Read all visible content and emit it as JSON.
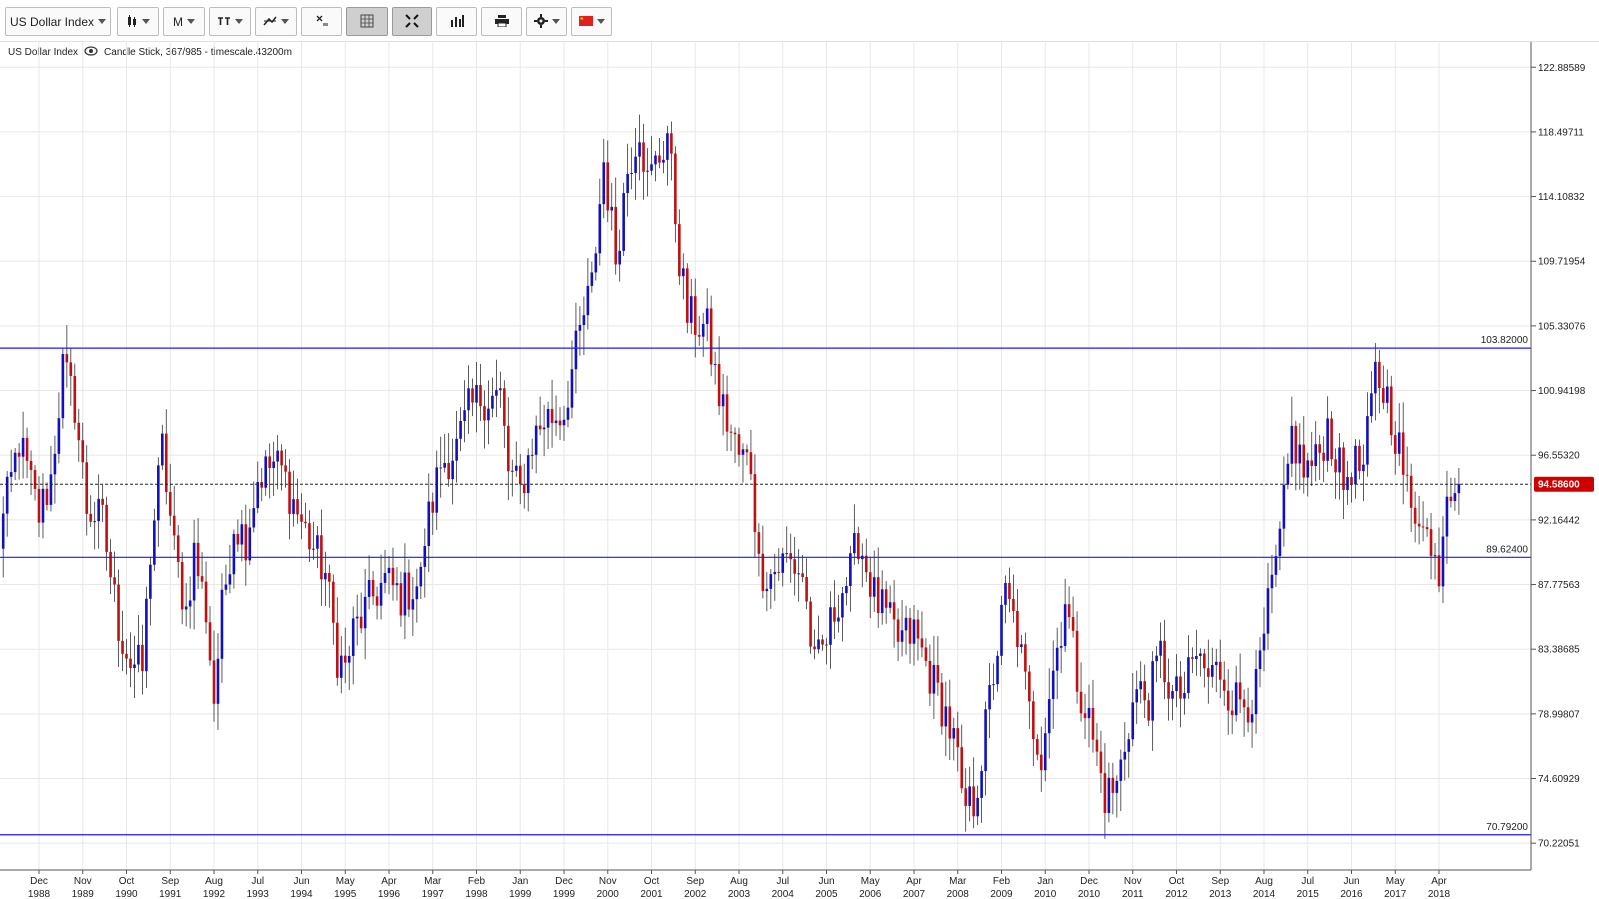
{
  "toolbar": {
    "symbol_label": "US Dollar Index",
    "period_label": "M",
    "icons": [
      "candlestick-icon",
      "period-icon",
      "indicator-icon",
      "drawing-icon",
      "clear-drawings-icon",
      "grid-icon",
      "fullscreen-icon",
      "volume-icon",
      "print-icon",
      "settings-icon",
      "flag-icon"
    ]
  },
  "info": {
    "symbol": "US Dollar Index",
    "detail": "Candle Stick, 367/985 - timescale.43200m"
  },
  "colors": {
    "up": "#1010c0",
    "down": "#c01010",
    "hline": "#1a1aff",
    "price_badge": "#d00000"
  },
  "chart_data": {
    "type": "candlestick",
    "ylim": [
      68.4,
      124.6
    ],
    "y_ticks": [
      "122.88589",
      "118.49711",
      "114.10832",
      "109.71954",
      "105.33076",
      "100.94198",
      "96.55320",
      "92.16442",
      "87.77563",
      "83.38685",
      "78.99807",
      "74.60929",
      "70.22051"
    ],
    "x_ticks": [
      {
        "month": "Dec",
        "year": "1988"
      },
      {
        "month": "Nov",
        "year": "1989"
      },
      {
        "month": "Oct",
        "year": "1990"
      },
      {
        "month": "Sep",
        "year": "1991"
      },
      {
        "month": "Aug",
        "year": "1992"
      },
      {
        "month": "Jul",
        "year": "1993"
      },
      {
        "month": "Jun",
        "year": "1994"
      },
      {
        "month": "May",
        "year": "1995"
      },
      {
        "month": "Apr",
        "year": "1996"
      },
      {
        "month": "Mar",
        "year": "1997"
      },
      {
        "month": "Feb",
        "year": "1998"
      },
      {
        "month": "Jan",
        "year": "1999"
      },
      {
        "month": "Dec",
        "year": "1999"
      },
      {
        "month": "Nov",
        "year": "2000"
      },
      {
        "month": "Oct",
        "year": "2001"
      },
      {
        "month": "Sep",
        "year": "2002"
      },
      {
        "month": "Aug",
        "year": "2003"
      },
      {
        "month": "Jul",
        "year": "2004"
      },
      {
        "month": "Jun",
        "year": "2005"
      },
      {
        "month": "May",
        "year": "2006"
      },
      {
        "month": "Apr",
        "year": "2007"
      },
      {
        "month": "Mar",
        "year": "2008"
      },
      {
        "month": "Feb",
        "year": "2009"
      },
      {
        "month": "Jan",
        "year": "2010"
      },
      {
        "month": "Dec",
        "year": "2010"
      },
      {
        "month": "Nov",
        "year": "2011"
      },
      {
        "month": "Oct",
        "year": "2012"
      },
      {
        "month": "Sep",
        "year": "2013"
      },
      {
        "month": "Aug",
        "year": "2014"
      },
      {
        "month": "Jul",
        "year": "2015"
      },
      {
        "month": "Jun",
        "year": "2016"
      },
      {
        "month": "May",
        "year": "2017"
      },
      {
        "month": "Apr",
        "year": "2018"
      }
    ],
    "horizontal_lines": [
      {
        "value": 103.82,
        "label": "103.82000"
      },
      {
        "value": 89.624,
        "label": "89.62400"
      },
      {
        "value": 70.792,
        "label": "70.79200"
      }
    ],
    "current_price": {
      "value": 94.586,
      "label": "94.58600"
    },
    "close_path": [
      [
        "1988-01",
        89.5
      ],
      [
        "1988-07",
        97.5
      ],
      [
        "1988-12",
        92.5
      ],
      [
        "1989-03",
        95.0
      ],
      [
        "1989-06",
        102.5
      ],
      [
        "1989-09",
        100.0
      ],
      [
        "1989-12",
        93.0
      ],
      [
        "1990-04",
        92.0
      ],
      [
        "1990-08",
        85.0
      ],
      [
        "1990-11",
        82.5
      ],
      [
        "1991-02",
        82.0
      ],
      [
        "1991-04",
        90.0
      ],
      [
        "1991-07",
        97.0
      ],
      [
        "1991-10",
        90.0
      ],
      [
        "1992-01",
        86.0
      ],
      [
        "1992-03",
        90.0
      ],
      [
        "1992-06",
        86.0
      ],
      [
        "1992-08",
        80.0
      ],
      [
        "1992-10",
        86.0
      ],
      [
        "1993-01",
        92.0
      ],
      [
        "1993-04",
        91.0
      ],
      [
        "1993-07",
        95.0
      ],
      [
        "1993-11",
        96.0
      ],
      [
        "1994-01",
        95.5
      ],
      [
        "1994-06",
        92.0
      ],
      [
        "1994-12",
        88.5
      ],
      [
        "1995-03",
        83.0
      ],
      [
        "1995-05",
        82.0
      ],
      [
        "1995-07",
        84.5
      ],
      [
        "1995-12",
        87.0
      ],
      [
        "1996-03",
        88.0
      ],
      [
        "1996-07",
        87.0
      ],
      [
        "1996-12",
        88.0
      ],
      [
        "1997-01",
        91.0
      ],
      [
        "1997-05",
        96.0
      ],
      [
        "1997-09",
        97.0
      ],
      [
        "1997-12",
        99.5
      ],
      [
        "1998-03",
        100.5
      ],
      [
        "1998-08",
        100.5
      ],
      [
        "1998-10",
        95.5
      ],
      [
        "1999-01",
        94.0
      ],
      [
        "1999-04",
        97.5
      ],
      [
        "1999-07",
        99.0
      ],
      [
        "1999-12",
        99.5
      ],
      [
        "2000-01",
        101.0
      ],
      [
        "2000-05",
        106.0
      ],
      [
        "2000-07",
        108.0
      ],
      [
        "2000-10",
        116.5
      ],
      [
        "2001-01",
        110.0
      ],
      [
        "2001-04",
        116.0
      ],
      [
        "2001-07",
        119.0
      ],
      [
        "2001-09",
        115.0
      ],
      [
        "2002-01",
        117.5
      ],
      [
        "2002-02",
        118.5
      ],
      [
        "2002-05",
        110.0
      ],
      [
        "2002-07",
        106.0
      ],
      [
        "2002-12",
        105.0
      ],
      [
        "2003-03",
        100.5
      ],
      [
        "2003-06",
        98.0
      ],
      [
        "2003-08",
        96.5
      ],
      [
        "2003-11",
        96.0
      ],
      [
        "2004-01",
        89.0
      ],
      [
        "2004-04",
        88.5
      ],
      [
        "2004-08",
        89.5
      ],
      [
        "2004-12",
        88.5
      ],
      [
        "2005-03",
        82.0
      ],
      [
        "2005-06",
        84.0
      ],
      [
        "2005-09",
        87.0
      ],
      [
        "2005-12",
        88.5
      ],
      [
        "2006-02",
        91.0
      ],
      [
        "2006-06",
        87.0
      ],
      [
        "2006-12",
        84.0
      ],
      [
        "2007-04",
        84.5
      ],
      [
        "2007-09",
        81.0
      ],
      [
        "2007-12",
        79.0
      ],
      [
        "2008-03",
        76.0
      ],
      [
        "2008-04",
        72.5
      ],
      [
        "2008-07",
        73.0
      ],
      [
        "2008-09",
        76.0
      ],
      [
        "2008-11",
        80.0
      ],
      [
        "2009-03",
        87.0
      ],
      [
        "2009-06",
        84.5
      ],
      [
        "2009-09",
        79.0
      ],
      [
        "2009-12",
        76.5
      ],
      [
        "2010-02",
        80.5
      ],
      [
        "2010-05",
        85.0
      ],
      [
        "2010-06",
        87.0
      ],
      [
        "2010-09",
        81.5
      ],
      [
        "2010-12",
        78.5
      ],
      [
        "2011-02",
        76.0
      ],
      [
        "2011-04",
        73.5
      ],
      [
        "2011-07",
        74.0
      ],
      [
        "2011-10",
        78.5
      ],
      [
        "2011-12",
        80.5
      ],
      [
        "2012-03",
        80.0
      ],
      [
        "2012-06",
        83.0
      ],
      [
        "2012-09",
        80.0
      ],
      [
        "2012-12",
        80.5
      ],
      [
        "2013-03",
        83.0
      ],
      [
        "2013-06",
        81.5
      ],
      [
        "2013-09",
        82.0
      ],
      [
        "2013-12",
        80.0
      ],
      [
        "2014-04",
        80.0
      ],
      [
        "2014-06",
        80.5
      ],
      [
        "2014-09",
        86.0
      ],
      [
        "2014-12",
        90.5
      ],
      [
        "2015-03",
        98.0
      ],
      [
        "2015-06",
        95.5
      ],
      [
        "2015-09",
        96.0
      ],
      [
        "2015-12",
        98.5
      ],
      [
        "2016-04",
        94.5
      ],
      [
        "2016-06",
        96.0
      ],
      [
        "2016-09",
        95.5
      ],
      [
        "2016-12",
        102.0
      ],
      [
        "2017-03",
        100.5
      ],
      [
        "2017-06",
        97.0
      ],
      [
        "2017-09",
        92.5
      ],
      [
        "2017-12",
        93.0
      ],
      [
        "2018-02",
        89.5
      ],
      [
        "2018-04",
        89.0
      ],
      [
        "2018-06",
        94.5
      ],
      [
        "2018-08",
        95.0
      ],
      [
        "2018-09",
        94.586
      ]
    ]
  }
}
